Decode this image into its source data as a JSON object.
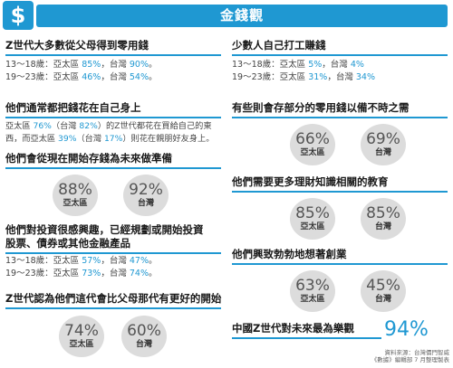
{
  "header": {
    "icon": "dollar-icon",
    "icon_glyph": "$",
    "title": "金錢觀"
  },
  "left": {
    "s1": {
      "title": "Z世代大多數從父母得到零用錢",
      "lines": [
        {
          "prefix": "13～18歲：亞太區 ",
          "v1": "85%",
          "mid": "，台灣 ",
          "v2": "90%",
          "suffix": "。"
        },
        {
          "prefix": "19～23歲：亞太區 ",
          "v1": "46%",
          "mid": "，台灣 ",
          "v2": "54%",
          "suffix": "。"
        }
      ]
    },
    "s2": {
      "title": "他們通常都把錢花在自己身上",
      "p1": "亞太區 ",
      "v1": "76%",
      "p2": "（台灣 ",
      "v2": "82%",
      "p3": "）的Z世代都花在買給自己的東西，而亞太區 ",
      "v3": "39%",
      "p4": "（台灣 ",
      "v4": "17%",
      "p5": "）則花在親朋好友身上。"
    },
    "s3": {
      "title": "他們會從現在開始存錢為未來做準備",
      "c1": {
        "pct": "88%",
        "lbl": "亞太區"
      },
      "c2": {
        "pct": "92%",
        "lbl": "台灣"
      }
    },
    "s4": {
      "title1": "他們對投資很感興趣，已經規劃或開始投資",
      "title2": "股票、債券或其他金融產品",
      "lines": [
        {
          "prefix": "13～18歲：亞太區 ",
          "v1": "57%",
          "mid": "，台灣 ",
          "v2": "47%",
          "suffix": "。"
        },
        {
          "prefix": "19～23歲：亞太區 ",
          "v1": "73%",
          "mid": "，台灣 ",
          "v2": "74%",
          "suffix": "。"
        }
      ]
    },
    "s5": {
      "title": "Z世代認為他們這代會比父母那代有更好的開始",
      "c1": {
        "pct": "74%",
        "lbl": "亞太區"
      },
      "c2": {
        "pct": "60%",
        "lbl": "台灣"
      }
    }
  },
  "right": {
    "s1": {
      "title": "少數人自己打工賺錢",
      "lines": [
        {
          "prefix": "13～18歲：亞太區 ",
          "v1": "5%",
          "mid": "，台灣 ",
          "v2": "4%",
          "suffix": ""
        },
        {
          "prefix": "19～23歲：亞太區 ",
          "v1": "31%",
          "mid": "，台灣 ",
          "v2": "34%",
          "suffix": ""
        }
      ]
    },
    "s2": {
      "title": "有些則會存部分的零用錢以備不時之需",
      "c1": {
        "pct": "66%",
        "lbl": "亞太區"
      },
      "c2": {
        "pct": "69%",
        "lbl": "台灣"
      }
    },
    "s3": {
      "title": "他們需要更多理財知識相關的教育",
      "c1": {
        "pct": "85%",
        "lbl": "亞太區"
      },
      "c2": {
        "pct": "85%",
        "lbl": "台灣"
      }
    },
    "s4": {
      "title": "他們興致勃勃地想著創業",
      "c1": {
        "pct": "63%",
        "lbl": "亞太區"
      },
      "c2": {
        "pct": "45%",
        "lbl": "台灣"
      }
    },
    "s5": {
      "title": "中國Z世代對未來最為樂觀",
      "big": "94%"
    }
  },
  "source": {
    "line1": "資料來源：台灣價門智威",
    "line2": "《數據》編輯部 7 月整理製表"
  },
  "colors": {
    "accent": "#1f98d2",
    "circle": "#dcdcdc"
  }
}
